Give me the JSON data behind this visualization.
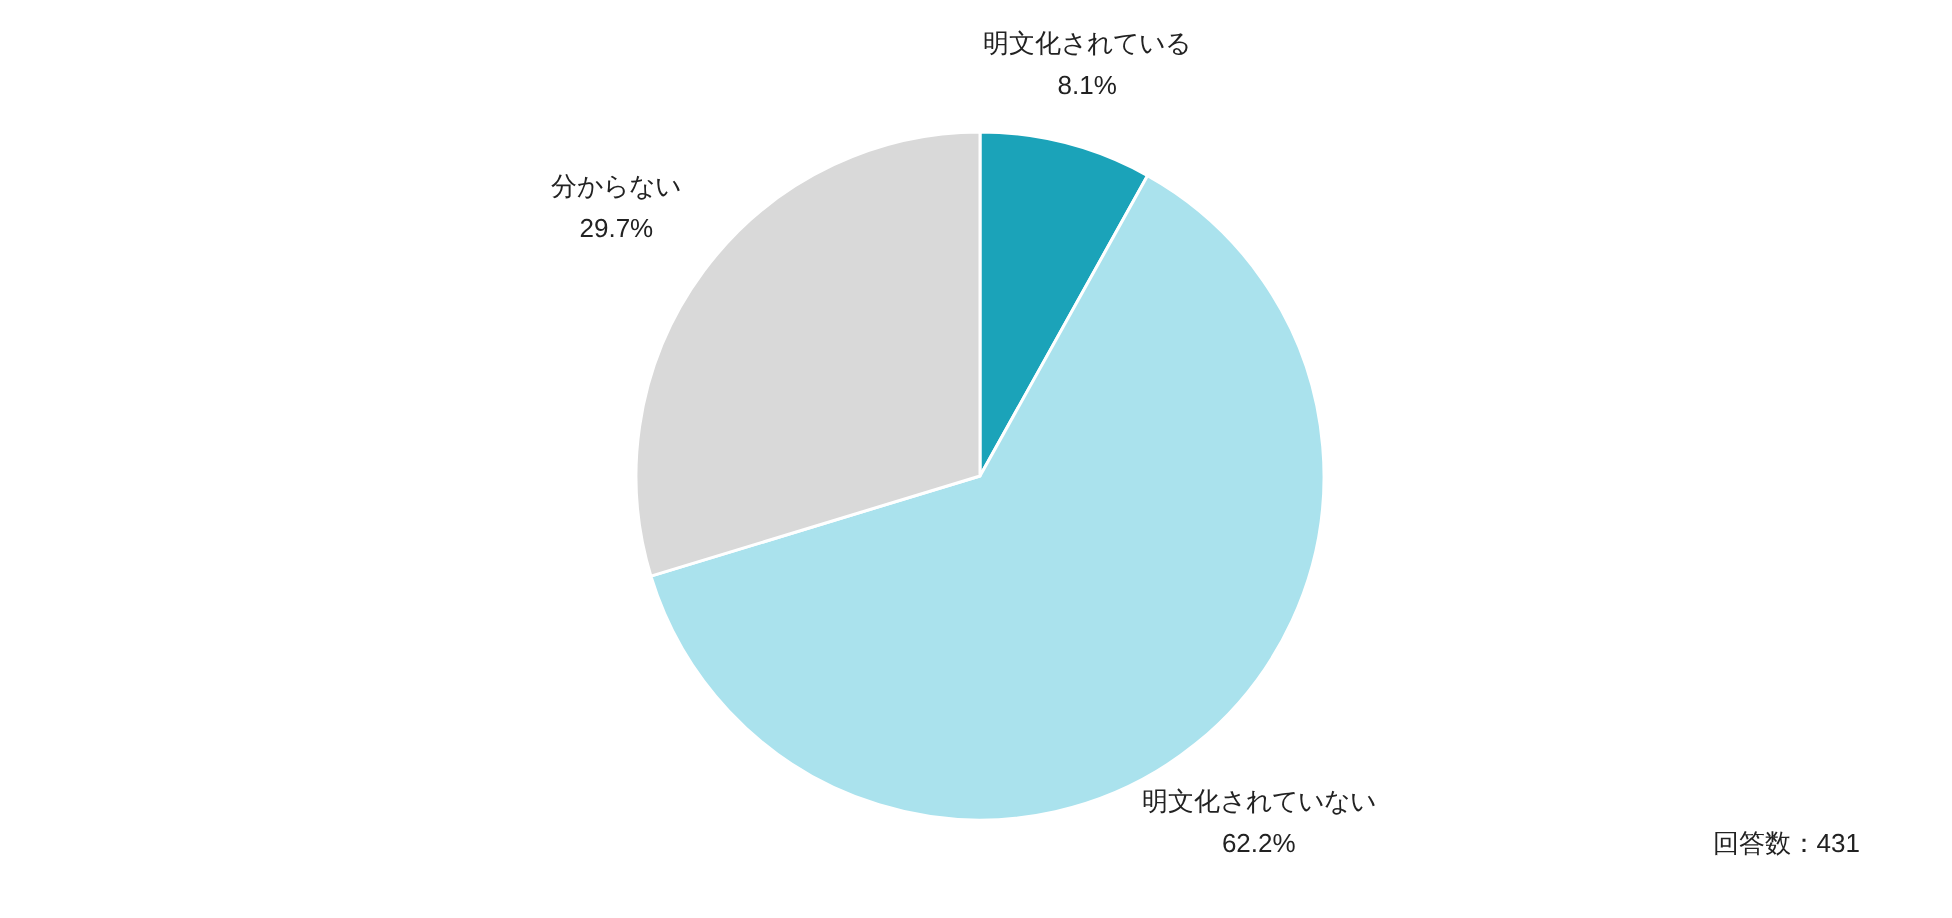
{
  "chart_data": {
    "type": "pie",
    "categories": [
      "明文化されている",
      "明文化されていない",
      "分からない"
    ],
    "values": [
      8.1,
      62.2,
      29.7
    ],
    "value_labels": [
      "8.1%",
      "62.2%",
      "29.7%"
    ],
    "colors": [
      "#1ba3b9",
      "#aae2ed",
      "#d9d9d9"
    ],
    "annotations": [
      "回答数：431"
    ]
  }
}
